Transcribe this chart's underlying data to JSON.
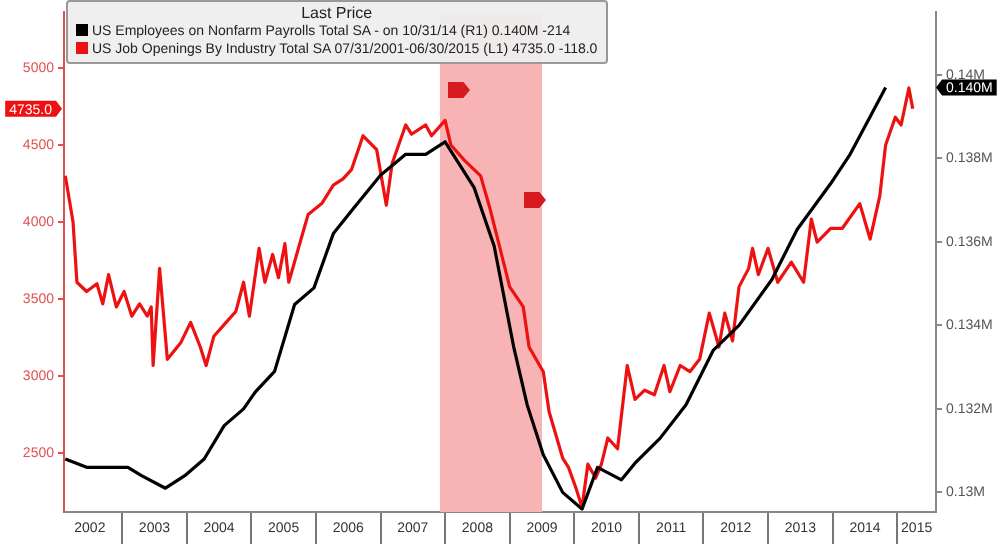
{
  "chart_data": {
    "type": "line",
    "legend_title": "Last Price",
    "legend": "top left",
    "marker": "none",
    "grid": false,
    "xlim": [
      2002.1,
      2015.6
    ],
    "xticks": [
      {
        "value": 2002.5,
        "label": "2002"
      },
      {
        "value": 2003,
        "label": null
      },
      {
        "value": 2003.5,
        "label": "2003"
      },
      {
        "value": 2004,
        "label": null
      },
      {
        "value": 2004.5,
        "label": "2004"
      },
      {
        "value": 2005,
        "label": null
      },
      {
        "value": 2005.5,
        "label": "2005"
      },
      {
        "value": 2006,
        "label": null
      },
      {
        "value": 2006.5,
        "label": "2006"
      },
      {
        "value": 2007,
        "label": null
      },
      {
        "value": 2007.5,
        "label": "2007"
      },
      {
        "value": 2008,
        "label": null
      },
      {
        "value": 2008.5,
        "label": "2008"
      },
      {
        "value": 2009,
        "label": null
      },
      {
        "value": 2009.5,
        "label": "2009"
      },
      {
        "value": 2010,
        "label": null
      },
      {
        "value": 2010.5,
        "label": "2010"
      },
      {
        "value": 2011,
        "label": null
      },
      {
        "value": 2011.5,
        "label": "2011"
      },
      {
        "value": 2012,
        "label": null
      },
      {
        "value": 2012.5,
        "label": "2012"
      },
      {
        "value": 2013,
        "label": null
      },
      {
        "value": 2013.5,
        "label": "2013"
      },
      {
        "value": 2014,
        "label": null
      },
      {
        "value": 2014.5,
        "label": "2014"
      },
      {
        "value": 2015,
        "label": null
      },
      {
        "value": 2015.3,
        "label": "2015"
      }
    ],
    "ylim": [
      2120,
      5360
    ],
    "yticks": [
      2500,
      3000,
      3500,
      4000,
      4500,
      5000
    ],
    "y2lim": [
      0.12953,
      0.1415
    ],
    "y2ticks": [
      {
        "value": 0.13,
        "label": "0.13M"
      },
      {
        "value": 0.132,
        "label": "0.132M"
      },
      {
        "value": 0.134,
        "label": "0.134M"
      },
      {
        "value": 0.136,
        "label": "0.136M"
      },
      {
        "value": 0.138,
        "label": "0.138M"
      },
      {
        "value": 0.14,
        "label": "0.14M"
      }
    ],
    "bands": [
      {
        "axis": "x",
        "from": 2007.92,
        "to": 2009.5,
        "color": "#f8b4b4"
      }
    ],
    "series": [
      {
        "name": "US Employees on Nonfarm Payrolls Total SA - on 10/31/14 (R1) 0.140M -214",
        "color": "#000000",
        "axis": "y2",
        "x": [
          2002.12,
          2002.45,
          2002.85,
          2003.09,
          2003.3,
          2003.67,
          2003.97,
          2004.27,
          2004.58,
          2004.88,
          2005.06,
          2005.36,
          2005.67,
          2005.97,
          2006.27,
          2006.58,
          2007.0,
          2007.39,
          2007.7,
          2008.0,
          2008.45,
          2008.76,
          2009.06,
          2009.27,
          2009.52,
          2009.82,
          2010.12,
          2010.36,
          2010.73,
          2010.94,
          2011.33,
          2011.73,
          2012.15,
          2012.55,
          2013.06,
          2013.45,
          2013.97,
          2014.27,
          2014.58,
          2014.82
        ],
        "values": [
          0.1308,
          0.1306,
          0.1306,
          0.1306,
          0.1304,
          0.1301,
          0.1304,
          0.1308,
          0.1316,
          0.132,
          0.1324,
          0.1329,
          0.1345,
          0.1349,
          0.1362,
          0.1368,
          0.1376,
          0.1381,
          0.1381,
          0.1384,
          0.1373,
          0.1359,
          0.1335,
          0.1321,
          0.1309,
          0.13,
          0.1296,
          0.1306,
          0.1303,
          0.1307,
          0.1313,
          0.1321,
          0.1334,
          0.134,
          0.1351,
          0.1363,
          0.1374,
          0.1381,
          0.139,
          0.1397
        ],
        "line_style": "solid"
      },
      {
        "name": "US Job Openings By Industry Total SA 07/31/2001-06/30/2015 (L1) 4735.0 -118.0",
        "color": "#ee1111",
        "axis": "y",
        "x": [
          2002.12,
          2002.24,
          2002.3,
          2002.45,
          2002.61,
          2002.7,
          2002.79,
          2002.91,
          2003.03,
          2003.15,
          2003.27,
          2003.39,
          2003.45,
          2003.48,
          2003.58,
          2003.7,
          2003.91,
          2004.06,
          2004.21,
          2004.3,
          2004.42,
          2004.61,
          2004.76,
          2004.88,
          2004.97,
          2005.12,
          2005.21,
          2005.33,
          2005.42,
          2005.52,
          2005.58,
          2005.79,
          2005.88,
          2006.09,
          2006.27,
          2006.42,
          2006.55,
          2006.73,
          2006.94,
          2007.09,
          2007.18,
          2007.39,
          2007.48,
          2007.7,
          2007.79,
          2008.0,
          2008.09,
          2008.3,
          2008.55,
          2008.7,
          2008.85,
          2009.0,
          2009.21,
          2009.3,
          2009.52,
          2009.61,
          2009.82,
          2009.91,
          2010.03,
          2010.12,
          2010.21,
          2010.33,
          2010.42,
          2010.52,
          2010.67,
          2010.82,
          2010.94,
          2011.09,
          2011.24,
          2011.39,
          2011.48,
          2011.64,
          2011.79,
          2011.94,
          2012.09,
          2012.24,
          2012.33,
          2012.45,
          2012.55,
          2012.7,
          2012.76,
          2012.85,
          2013.0,
          2013.15,
          2013.36,
          2013.55,
          2013.67,
          2013.76,
          2013.97,
          2014.15,
          2014.42,
          2014.58,
          2014.73,
          2014.82,
          2014.97,
          2015.06,
          2015.18,
          2015.24
        ],
        "values": [
          4300,
          4000,
          3610,
          3550,
          3600,
          3470,
          3660,
          3450,
          3550,
          3390,
          3470,
          3390,
          3450,
          3070,
          3700,
          3110,
          3220,
          3350,
          3190,
          3070,
          3260,
          3350,
          3420,
          3610,
          3390,
          3830,
          3610,
          3790,
          3640,
          3860,
          3610,
          3920,
          4050,
          4120,
          4240,
          4280,
          4340,
          4560,
          4470,
          4110,
          4380,
          4630,
          4570,
          4630,
          4560,
          4660,
          4500,
          4400,
          4300,
          4080,
          3830,
          3580,
          3450,
          3190,
          3030,
          2770,
          2470,
          2410,
          2270,
          2150,
          2430,
          2340,
          2430,
          2600,
          2530,
          3070,
          2850,
          2910,
          2880,
          3070,
          2900,
          3070,
          3030,
          3110,
          3410,
          3190,
          3410,
          3230,
          3580,
          3700,
          3830,
          3660,
          3830,
          3610,
          3740,
          3610,
          4020,
          3870,
          3960,
          3960,
          4120,
          3890,
          4170,
          4500,
          4680,
          4630,
          4870,
          4735
        ]
      }
    ],
    "annotations": [
      "0.140M",
      "4735.0"
    ]
  }
}
